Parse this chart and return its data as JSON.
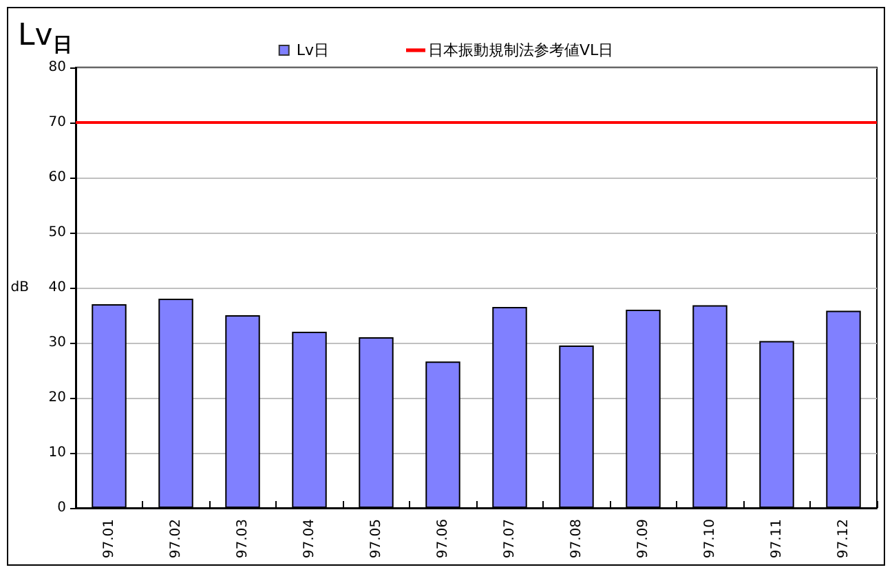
{
  "chart_data": {
    "type": "bar",
    "title": "Lv$_{日}$",
    "ylabel": "dB",
    "categories": [
      "97.01",
      "97.02",
      "97.03",
      "97.04",
      "97.05",
      "97.06",
      "97.07",
      "97.08",
      "97.09",
      "97.10",
      "97.11",
      "97.12"
    ],
    "series": [
      {
        "name": "Lv日",
        "color": "#8080ff",
        "values": [
          37,
          38,
          35,
          32,
          31,
          26.6,
          36.5,
          29.5,
          36,
          36.8,
          30.3,
          35.8
        ]
      }
    ],
    "ylim": [
      0,
      80
    ],
    "yticks": [
      0,
      10,
      20,
      30,
      40,
      50,
      60,
      70,
      80
    ],
    "grid": "y",
    "legend": "top",
    "ref_lines": [
      {
        "axis": "y",
        "value": 70,
        "label": "日本振動規制法参考値VL日",
        "color": "#ff0000",
        "line_style": "solid"
      }
    ]
  }
}
